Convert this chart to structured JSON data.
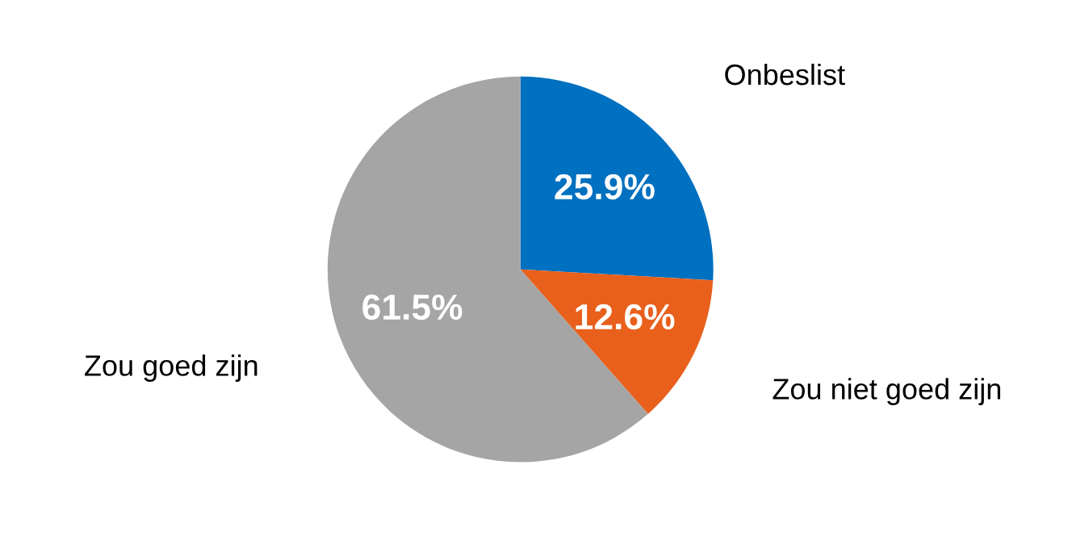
{
  "chart_data": {
    "type": "pie",
    "categories": [
      "Onbeslist",
      "Zou niet goed zijn",
      "Zou goed zijn"
    ],
    "values": [
      25.9,
      12.6,
      61.5
    ],
    "colors": [
      "#0070c0",
      "#e8601c",
      "#a5a5a5"
    ],
    "value_labels": [
      "25.9%",
      "12.6%",
      "61.5%"
    ],
    "legend": false
  }
}
